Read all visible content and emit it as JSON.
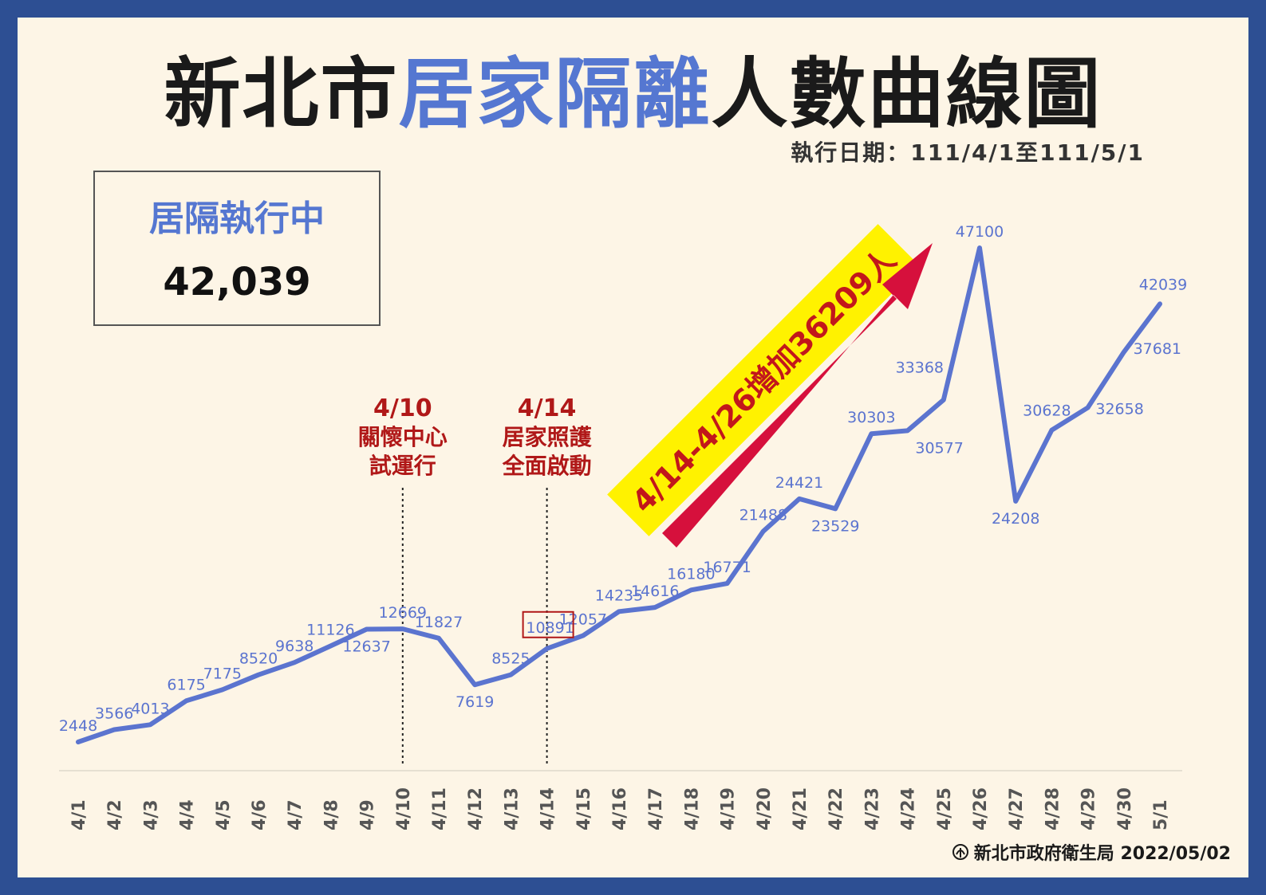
{
  "title": {
    "part1": "新北市",
    "highlight": "居家隔離",
    "part2": "人數曲線圖"
  },
  "period": "執行日期：111/4/1至111/5/1",
  "summary": {
    "label": "居隔執行中",
    "value": "42,039"
  },
  "colors": {
    "line": "#5b74cf",
    "highlight": "#5577d1",
    "annotation": "#b01818",
    "banner": "#fff200",
    "arrow": "#d6103c",
    "frame": "#2d4f93"
  },
  "chart_data": {
    "type": "line",
    "categories": [
      "4/1",
      "4/2",
      "4/3",
      "4/4",
      "4/5",
      "4/6",
      "4/7",
      "4/8",
      "4/9",
      "4/10",
      "4/11",
      "4/12",
      "4/13",
      "4/14",
      "4/15",
      "4/16",
      "4/17",
      "4/18",
      "4/19",
      "4/20",
      "4/21",
      "4/22",
      "4/23",
      "4/24",
      "4/25",
      "4/26",
      "4/27",
      "4/28",
      "4/29",
      "4/30",
      "5/1"
    ],
    "values": [
      2448,
      3566,
      4013,
      6175,
      7175,
      8520,
      9638,
      11126,
      12637,
      12669,
      11827,
      7619,
      8525,
      10891,
      12057,
      14235,
      14616,
      16180,
      16771,
      21488,
      24421,
      23529,
      30303,
      30577,
      33368,
      47100,
      24208,
      30628,
      32658,
      37681,
      42039
    ],
    "data_labels": [
      "2448",
      "3566",
      "4013",
      "6175",
      "7175",
      "8520",
      "9638",
      "11126",
      "12637",
      "12669",
      "11827",
      "7619",
      "8525",
      "10891",
      "12057",
      "14235",
      "14616",
      "16180",
      "16771",
      "21488",
      "24421",
      "23529",
      "30303",
      "30577",
      "33368",
      "47100",
      "24208",
      "30628",
      "32658",
      "37681",
      "42039"
    ],
    "ylim": [
      0,
      50000
    ],
    "grid": false,
    "legend": "none",
    "annotations": [
      {
        "category": "4/10",
        "lines": [
          "4/10",
          "關懷中心",
          "試運行"
        ]
      },
      {
        "category": "4/14",
        "lines": [
          "4/14",
          "居家照護",
          "全面啟動"
        ]
      }
    ],
    "banner": "4/14-4/26增加36209人",
    "highlighted_point": "4/14"
  },
  "footer": {
    "logo": "health-bureau-logo",
    "text": "新北市政府衛生局 2022/05/02"
  }
}
